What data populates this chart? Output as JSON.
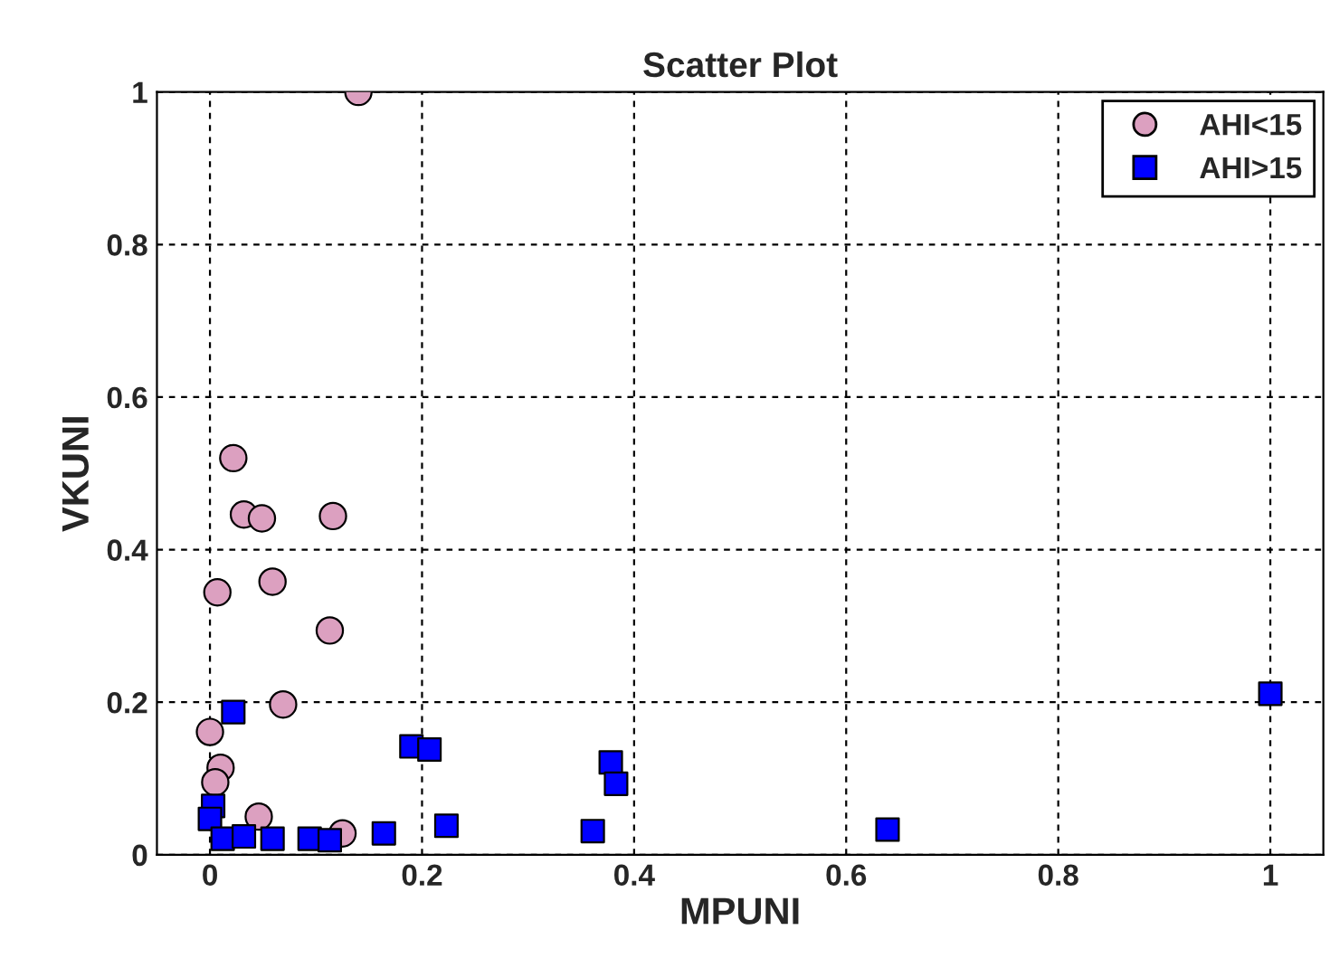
{
  "chart_data": {
    "type": "scatter",
    "title": "Scatter Plot",
    "xlabel": "MPUNI",
    "ylabel": "VKUNI",
    "xlim": [
      -0.05,
      1.05
    ],
    "ylim": [
      0,
      1
    ],
    "xticks": [
      0,
      0.2,
      0.4,
      0.6,
      0.8,
      1
    ],
    "yticks": [
      0,
      0.2,
      0.4,
      0.6,
      0.8,
      1
    ],
    "grid": true,
    "legend": "top right",
    "series": [
      {
        "name": "AHI<15",
        "color": "#dca0c0",
        "marker": "circle",
        "x": [
          0.14,
          0.022,
          0.032,
          0.049,
          0.116,
          0.007,
          0.059,
          0.113,
          0.069,
          0.0,
          0.01,
          0.005,
          0.046,
          0.125
        ],
        "values": [
          1.0,
          0.52,
          0.446,
          0.441,
          0.444,
          0.344,
          0.358,
          0.294,
          0.197,
          0.161,
          0.114,
          0.095,
          0.05,
          0.028
        ]
      },
      {
        "name": "AHI>15",
        "color": "#0000ff",
        "marker": "square",
        "x": [
          0.022,
          0.19,
          0.207,
          0.003,
          0.0,
          0.012,
          0.032,
          0.059,
          0.094,
          0.113,
          0.164,
          0.223,
          0.361,
          0.378,
          0.383,
          0.639,
          1.0
        ],
        "values": [
          0.187,
          0.142,
          0.138,
          0.064,
          0.047,
          0.021,
          0.024,
          0.021,
          0.021,
          0.019,
          0.028,
          0.038,
          0.031,
          0.121,
          0.093,
          0.033,
          0.211
        ]
      }
    ]
  }
}
